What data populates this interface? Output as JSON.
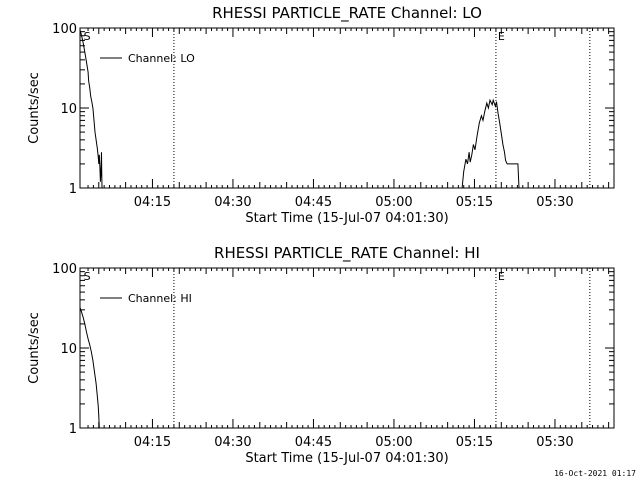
{
  "footer_timestamp": "16-Oct-2021 01:17",
  "chart_data": [
    {
      "type": "line",
      "title": "RHESSI PARTICLE_RATE Channel: LO",
      "xlabel": "Start Time (15-Jul-07 04:01:30)",
      "ylabel": "Counts/sec",
      "yscale": "log",
      "ylim": [
        1,
        100
      ],
      "yticks": [
        "1",
        "10",
        "100"
      ],
      "xlim_minutes_from_start": [
        0,
        99.5
      ],
      "xticks": [
        {
          "label": "04:15",
          "t": 13.5
        },
        {
          "label": "04:30",
          "t": 28.5
        },
        {
          "label": "04:45",
          "t": 43.5
        },
        {
          "label": "05:00",
          "t": 58.5
        },
        {
          "label": "05:15",
          "t": 73.5
        },
        {
          "label": "05:30",
          "t": 88.5
        }
      ],
      "markers": [
        {
          "label": "S",
          "t": 0.3
        },
        {
          "label": "",
          "t": 17.5
        },
        {
          "label": "E",
          "t": 77.5
        },
        {
          "label": "",
          "t": 95.0
        }
      ],
      "legend": {
        "label": "Channel: LO",
        "placement": "top-left"
      },
      "series": [
        {
          "segments": [
            [
              [
                0.0,
                95
              ],
              [
                0.3,
                80
              ],
              [
                0.6,
                65
              ],
              [
                0.9,
                50
              ],
              [
                1.2,
                38
              ],
              [
                1.5,
                28
              ],
              [
                1.6,
                22
              ],
              [
                1.8,
                18
              ],
              [
                2.0,
                14
              ],
              [
                2.2,
                12
              ],
              [
                2.4,
                10
              ],
              [
                2.6,
                7
              ],
              [
                2.8,
                5
              ],
              [
                3.0,
                4
              ],
              [
                3.2,
                3.2
              ],
              [
                3.4,
                2.5
              ],
              [
                3.5,
                2.0
              ],
              [
                3.6,
                2.6
              ],
              [
                3.7,
                1.8
              ],
              [
                3.8,
                1.2
              ],
              [
                3.9,
                1.5
              ],
              [
                4.0,
                2.8
              ],
              [
                4.05,
                1.7
              ],
              [
                4.1,
                1.0
              ]
            ],
            [
              [
                71.2,
                1.0
              ],
              [
                71.5,
                1.6
              ],
              [
                71.9,
                2.3
              ],
              [
                72.2,
                2.0
              ],
              [
                72.5,
                2.8
              ],
              [
                72.7,
                2.1
              ],
              [
                73.0,
                2.6
              ],
              [
                73.3,
                3.5
              ],
              [
                73.6,
                3.0
              ],
              [
                74.0,
                4.5
              ],
              [
                74.4,
                6.5
              ],
              [
                74.8,
                8.0
              ],
              [
                75.1,
                7.0
              ],
              [
                75.4,
                9.0
              ],
              [
                75.8,
                11.5
              ],
              [
                76.1,
                10.0
              ],
              [
                76.4,
                12.5
              ],
              [
                76.8,
                11.0
              ],
              [
                77.0,
                12.5
              ],
              [
                77.4,
                10.5
              ],
              [
                77.6,
                12.0
              ],
              [
                77.9,
                8.5
              ],
              [
                78.2,
                6.5
              ],
              [
                78.5,
                4.8
              ],
              [
                78.8,
                3.5
              ],
              [
                79.1,
                2.8
              ],
              [
                79.3,
                2.2
              ],
              [
                79.6,
                2.0
              ],
              [
                80.3,
                2.0
              ],
              [
                81.0,
                2.0
              ],
              [
                81.6,
                2.0
              ],
              [
                81.8,
                1.0
              ]
            ]
          ]
        }
      ]
    },
    {
      "type": "line",
      "title": "RHESSI PARTICLE_RATE Channel: HI",
      "xlabel": "Start Time (15-Jul-07 04:01:30)",
      "ylabel": "Counts/sec",
      "yscale": "log",
      "ylim": [
        1,
        100
      ],
      "yticks": [
        "1",
        "10",
        "100"
      ],
      "xlim_minutes_from_start": [
        0,
        99.5
      ],
      "xticks": [
        {
          "label": "04:15",
          "t": 13.5
        },
        {
          "label": "04:30",
          "t": 28.5
        },
        {
          "label": "04:45",
          "t": 43.5
        },
        {
          "label": "05:00",
          "t": 58.5
        },
        {
          "label": "05:15",
          "t": 73.5
        },
        {
          "label": "05:30",
          "t": 88.5
        }
      ],
      "markers": [
        {
          "label": "S",
          "t": 0.3
        },
        {
          "label": "",
          "t": 17.5
        },
        {
          "label": "E",
          "t": 77.5
        },
        {
          "label": "",
          "t": 95.0
        }
      ],
      "legend": {
        "label": "Channel: HI",
        "placement": "top-left"
      },
      "series": [
        {
          "segments": [
            [
              [
                0.0,
                32
              ],
              [
                0.3,
                28
              ],
              [
                0.6,
                24
              ],
              [
                0.9,
                20
              ],
              [
                1.2,
                16
              ],
              [
                1.5,
                13
              ],
              [
                1.8,
                11
              ],
              [
                2.1,
                9
              ],
              [
                2.4,
                7
              ],
              [
                2.7,
                5
              ],
              [
                3.0,
                3.6
              ],
              [
                3.2,
                2.6
              ],
              [
                3.4,
                1.9
              ],
              [
                3.5,
                1.4
              ],
              [
                3.6,
                1.0
              ]
            ]
          ]
        }
      ]
    }
  ]
}
